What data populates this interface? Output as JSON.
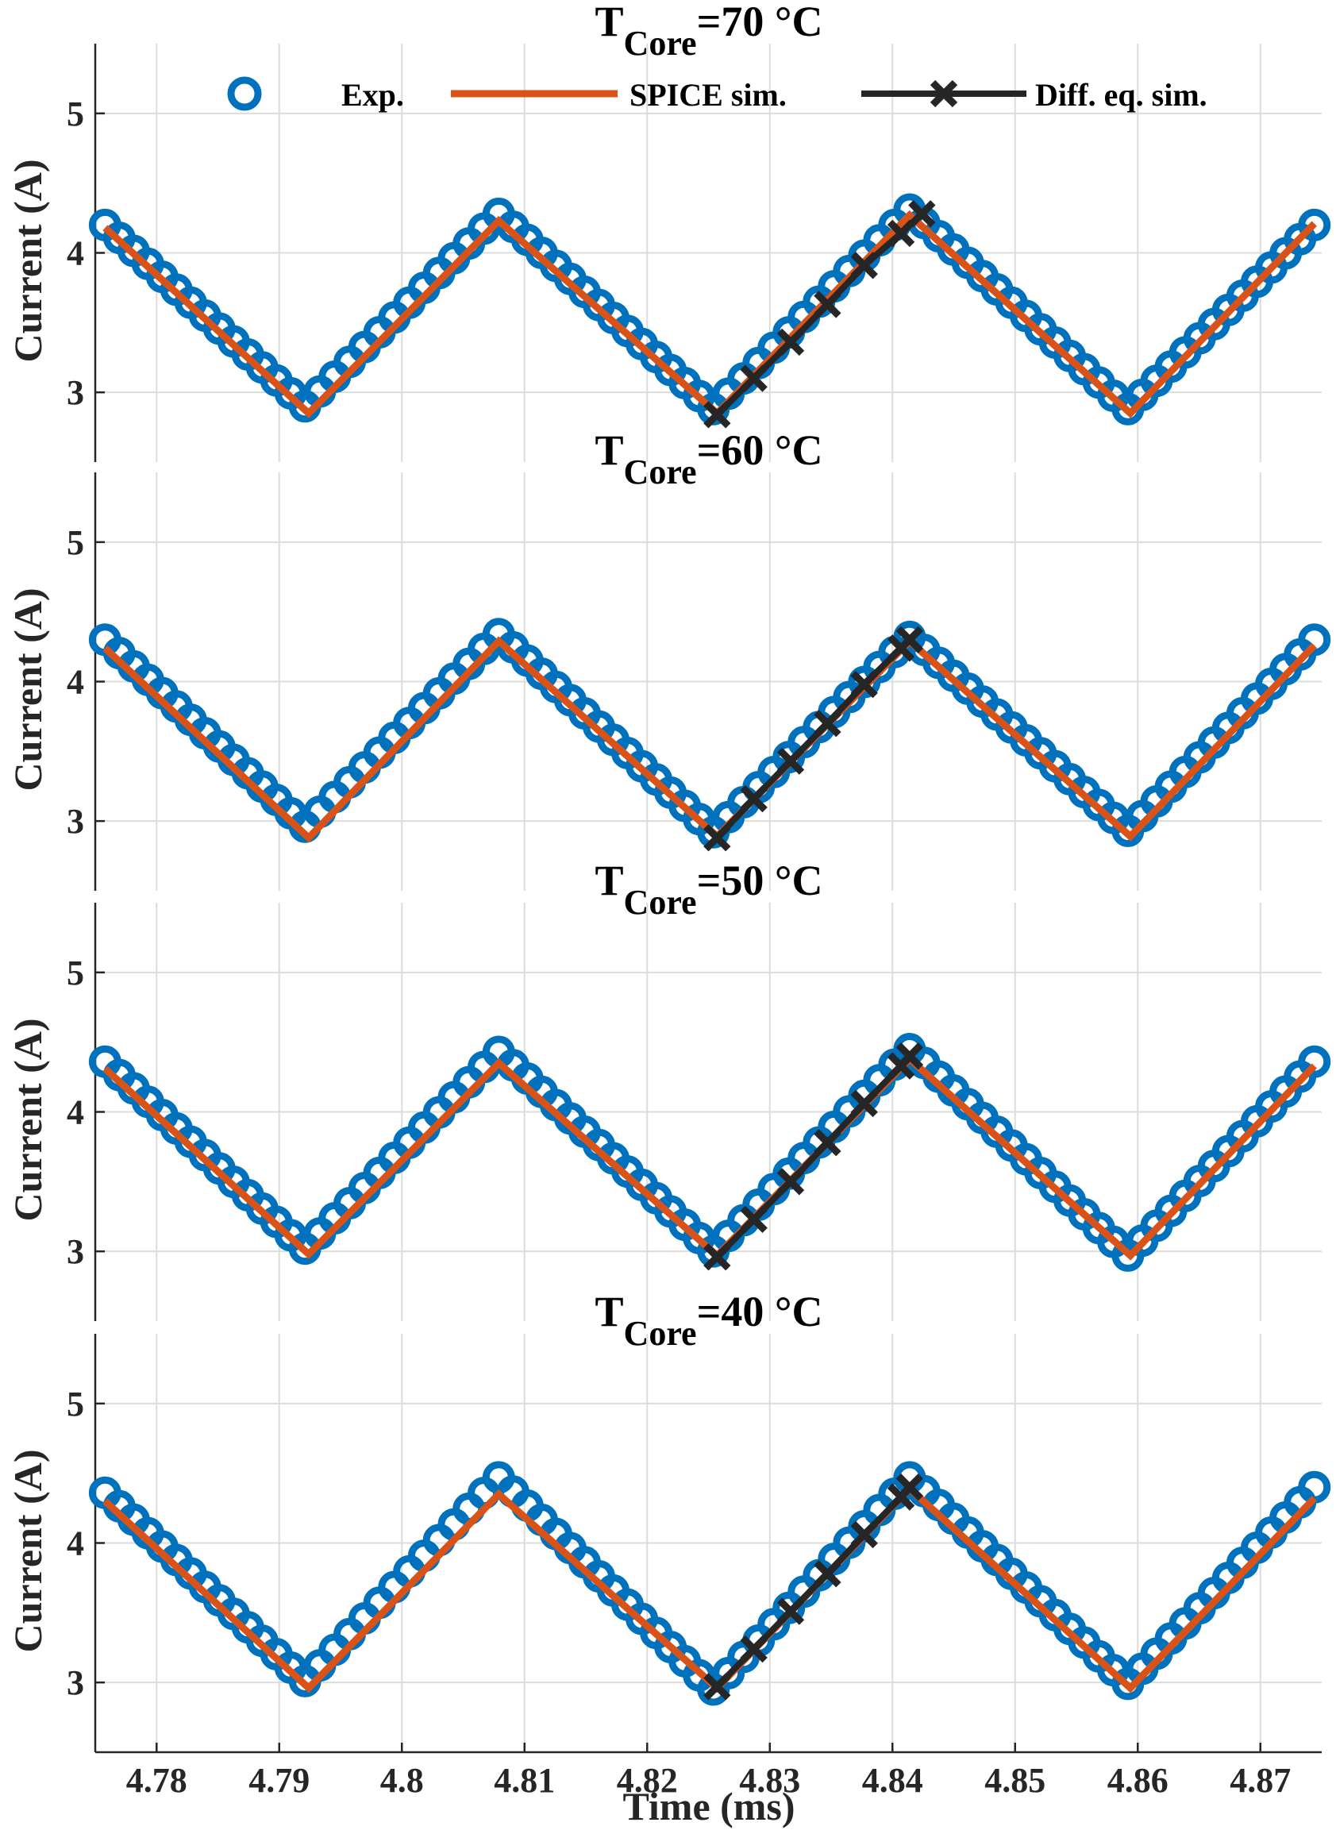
{
  "chart_data": {
    "type": "line",
    "xlabel": "Time (ms)",
    "ylabel": "Current (A)",
    "xlim": [
      4.775,
      4.875
    ],
    "ylim": [
      2.5,
      5.5
    ],
    "xticks": [
      4.78,
      4.79,
      4.8,
      4.81,
      4.82,
      4.83,
      4.84,
      4.85,
      4.86,
      4.87
    ],
    "xtick_labels": [
      "4.78",
      "4.79",
      "4.8",
      "4.81",
      "4.82",
      "4.83",
      "4.84",
      "4.85",
      "4.86",
      "4.87"
    ],
    "yticks": [
      3,
      4,
      5
    ],
    "ytick_labels": [
      "3",
      "4",
      "5"
    ],
    "grid": true,
    "legend": {
      "placement": "top",
      "entries": [
        {
          "label": "Exp.",
          "color": "#0072BD",
          "marker": "circle"
        },
        {
          "label": "SPICE sim.",
          "color": "#D95319",
          "marker": "none"
        },
        {
          "label": "Diff. eq. sim.",
          "color": "#262626",
          "marker": "x"
        }
      ]
    },
    "panels": [
      {
        "title_main": "T",
        "title_sub": "Core",
        "title_tail": "=70 °C",
        "series": [
          {
            "name": "Exp.",
            "x": [
              4.7758,
              4.7921,
              4.8079,
              4.8254,
              4.8414,
              4.8592,
              4.8744
            ],
            "y": [
              4.2,
              2.9,
              4.28,
              2.88,
              4.31,
              2.88,
              4.2
            ]
          },
          {
            "name": "SPICE sim.",
            "x": [
              4.7758,
              4.7924,
              4.8079,
              4.8257,
              4.8414,
              4.8594,
              4.8744
            ],
            "y": [
              4.18,
              2.85,
              4.23,
              2.85,
              4.27,
              2.85,
              4.21
            ]
          },
          {
            "name": "Diff. eq. sim.",
            "x": [
              4.8257,
              4.8287,
              4.8317,
              4.8347,
              4.8377,
              4.8407,
              4.8424
            ],
            "y": [
              2.84,
              3.1,
              3.36,
              3.63,
              3.91,
              4.14,
              4.28
            ]
          }
        ]
      },
      {
        "title_main": "T",
        "title_sub": "Core",
        "title_tail": "=60 °C",
        "series": [
          {
            "name": "Exp.",
            "x": [
              4.7758,
              4.7921,
              4.8079,
              4.8254,
              4.8414,
              4.8592,
              4.8744
            ],
            "y": [
              4.3,
              2.96,
              4.34,
              2.92,
              4.32,
              2.93,
              4.3
            ]
          },
          {
            "name": "SPICE sim.",
            "x": [
              4.7758,
              4.7924,
              4.8079,
              4.8257,
              4.8414,
              4.8594,
              4.8744
            ],
            "y": [
              4.24,
              2.88,
              4.29,
              2.89,
              4.29,
              2.89,
              4.26
            ]
          },
          {
            "name": "Diff. eq. sim.",
            "x": [
              4.8257,
              4.8287,
              4.8317,
              4.8347,
              4.8377,
              4.8407,
              4.8414
            ],
            "y": [
              2.88,
              3.16,
              3.43,
              3.7,
              3.98,
              4.24,
              4.3
            ]
          }
        ]
      },
      {
        "title_main": "T",
        "title_sub": "Core",
        "title_tail": "=50 °C",
        "series": [
          {
            "name": "Exp.",
            "x": [
              4.7758,
              4.7921,
              4.8079,
              4.8254,
              4.8414,
              4.8592,
              4.8744
            ],
            "y": [
              4.36,
              3.02,
              4.43,
              3.0,
              4.45,
              2.97,
              4.36
            ]
          },
          {
            "name": "SPICE sim.",
            "x": [
              4.7758,
              4.7924,
              4.8079,
              4.8257,
              4.8414,
              4.8594,
              4.8744
            ],
            "y": [
              4.31,
              2.98,
              4.35,
              2.97,
              4.38,
              2.97,
              4.33
            ]
          },
          {
            "name": "Diff. eq. sim.",
            "x": [
              4.8257,
              4.8287,
              4.8317,
              4.8347,
              4.8377,
              4.8407,
              4.8414
            ],
            "y": [
              2.96,
              3.23,
              3.5,
              3.78,
              4.06,
              4.33,
              4.4
            ]
          }
        ]
      },
      {
        "title_main": "T",
        "title_sub": "Core",
        "title_tail": "=40 °C",
        "series": [
          {
            "name": "Exp.",
            "x": [
              4.7758,
              4.7921,
              4.8079,
              4.8254,
              4.8414,
              4.8592,
              4.8744
            ],
            "y": [
              4.36,
              3.01,
              4.47,
              2.95,
              4.47,
              2.99,
              4.4
            ]
          },
          {
            "name": "SPICE sim.",
            "x": [
              4.7758,
              4.7924,
              4.8079,
              4.8257,
              4.8414,
              4.8594,
              4.8744
            ],
            "y": [
              4.3,
              2.96,
              4.35,
              2.96,
              4.39,
              2.96,
              4.32
            ]
          },
          {
            "name": "Diff. eq. sim.",
            "x": [
              4.8257,
              4.8287,
              4.8317,
              4.8347,
              4.8377,
              4.8407,
              4.8414
            ],
            "y": [
              2.97,
              3.24,
              3.51,
              3.78,
              4.06,
              4.33,
              4.4
            ]
          }
        ]
      }
    ]
  }
}
